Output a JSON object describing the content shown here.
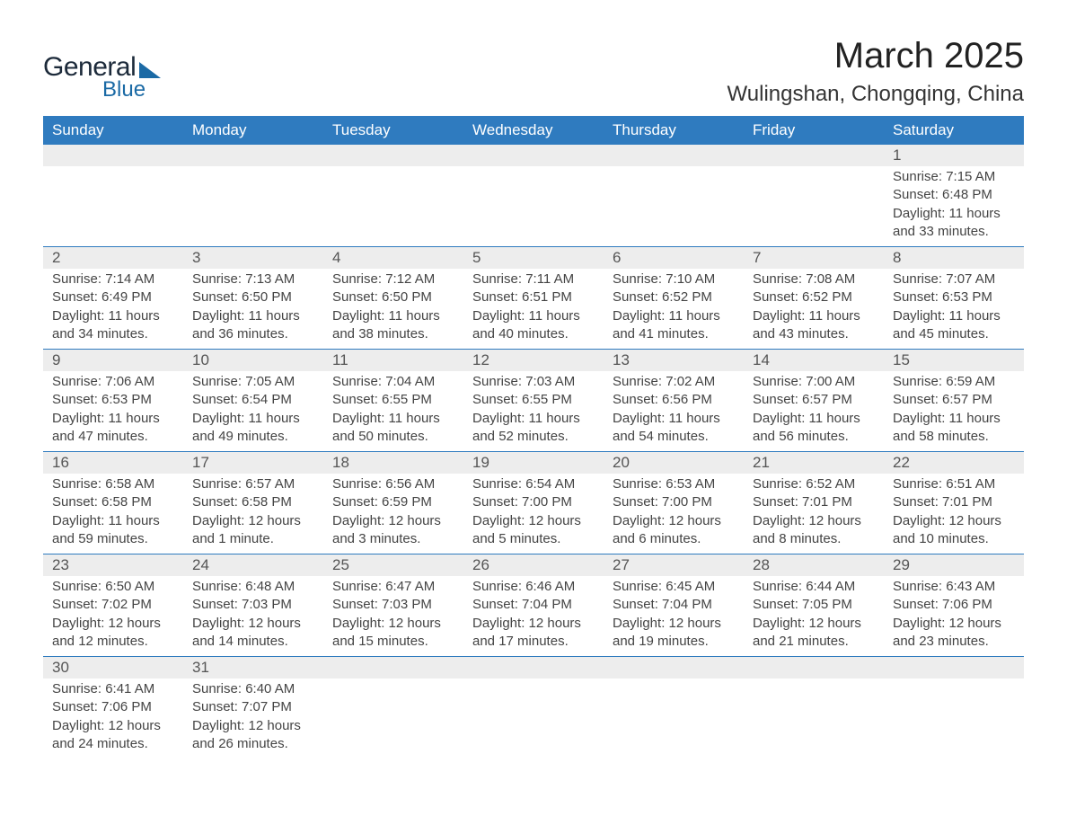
{
  "logo": {
    "word1": "General",
    "word2": "Blue"
  },
  "title": "March 2025",
  "location": "Wulingshan, Chongqing, China",
  "styling": {
    "header_bg": "#2f7bbf",
    "header_text_color": "#ffffff",
    "daynum_bg": "#ededed",
    "border_color": "#2f7bbf",
    "body_bg": "#ffffff",
    "page_bg": "#ffffff",
    "text_color": "#444444",
    "logo_dark": "#1c2a3a",
    "logo_blue": "#1b6aa5",
    "title_fontsize": 40,
    "location_fontsize": 24,
    "header_fontsize": 17,
    "cell_fontsize": 15
  },
  "weekdays": [
    "Sunday",
    "Monday",
    "Tuesday",
    "Wednesday",
    "Thursday",
    "Friday",
    "Saturday"
  ],
  "weeks": [
    [
      null,
      null,
      null,
      null,
      null,
      null,
      {
        "n": "1",
        "sr": "Sunrise: 7:15 AM",
        "ss": "Sunset: 6:48 PM",
        "d1": "Daylight: 11 hours",
        "d2": "and 33 minutes."
      }
    ],
    [
      {
        "n": "2",
        "sr": "Sunrise: 7:14 AM",
        "ss": "Sunset: 6:49 PM",
        "d1": "Daylight: 11 hours",
        "d2": "and 34 minutes."
      },
      {
        "n": "3",
        "sr": "Sunrise: 7:13 AM",
        "ss": "Sunset: 6:50 PM",
        "d1": "Daylight: 11 hours",
        "d2": "and 36 minutes."
      },
      {
        "n": "4",
        "sr": "Sunrise: 7:12 AM",
        "ss": "Sunset: 6:50 PM",
        "d1": "Daylight: 11 hours",
        "d2": "and 38 minutes."
      },
      {
        "n": "5",
        "sr": "Sunrise: 7:11 AM",
        "ss": "Sunset: 6:51 PM",
        "d1": "Daylight: 11 hours",
        "d2": "and 40 minutes."
      },
      {
        "n": "6",
        "sr": "Sunrise: 7:10 AM",
        "ss": "Sunset: 6:52 PM",
        "d1": "Daylight: 11 hours",
        "d2": "and 41 minutes."
      },
      {
        "n": "7",
        "sr": "Sunrise: 7:08 AM",
        "ss": "Sunset: 6:52 PM",
        "d1": "Daylight: 11 hours",
        "d2": "and 43 minutes."
      },
      {
        "n": "8",
        "sr": "Sunrise: 7:07 AM",
        "ss": "Sunset: 6:53 PM",
        "d1": "Daylight: 11 hours",
        "d2": "and 45 minutes."
      }
    ],
    [
      {
        "n": "9",
        "sr": "Sunrise: 7:06 AM",
        "ss": "Sunset: 6:53 PM",
        "d1": "Daylight: 11 hours",
        "d2": "and 47 minutes."
      },
      {
        "n": "10",
        "sr": "Sunrise: 7:05 AM",
        "ss": "Sunset: 6:54 PM",
        "d1": "Daylight: 11 hours",
        "d2": "and 49 minutes."
      },
      {
        "n": "11",
        "sr": "Sunrise: 7:04 AM",
        "ss": "Sunset: 6:55 PM",
        "d1": "Daylight: 11 hours",
        "d2": "and 50 minutes."
      },
      {
        "n": "12",
        "sr": "Sunrise: 7:03 AM",
        "ss": "Sunset: 6:55 PM",
        "d1": "Daylight: 11 hours",
        "d2": "and 52 minutes."
      },
      {
        "n": "13",
        "sr": "Sunrise: 7:02 AM",
        "ss": "Sunset: 6:56 PM",
        "d1": "Daylight: 11 hours",
        "d2": "and 54 minutes."
      },
      {
        "n": "14",
        "sr": "Sunrise: 7:00 AM",
        "ss": "Sunset: 6:57 PM",
        "d1": "Daylight: 11 hours",
        "d2": "and 56 minutes."
      },
      {
        "n": "15",
        "sr": "Sunrise: 6:59 AM",
        "ss": "Sunset: 6:57 PM",
        "d1": "Daylight: 11 hours",
        "d2": "and 58 minutes."
      }
    ],
    [
      {
        "n": "16",
        "sr": "Sunrise: 6:58 AM",
        "ss": "Sunset: 6:58 PM",
        "d1": "Daylight: 11 hours",
        "d2": "and 59 minutes."
      },
      {
        "n": "17",
        "sr": "Sunrise: 6:57 AM",
        "ss": "Sunset: 6:58 PM",
        "d1": "Daylight: 12 hours",
        "d2": "and 1 minute."
      },
      {
        "n": "18",
        "sr": "Sunrise: 6:56 AM",
        "ss": "Sunset: 6:59 PM",
        "d1": "Daylight: 12 hours",
        "d2": "and 3 minutes."
      },
      {
        "n": "19",
        "sr": "Sunrise: 6:54 AM",
        "ss": "Sunset: 7:00 PM",
        "d1": "Daylight: 12 hours",
        "d2": "and 5 minutes."
      },
      {
        "n": "20",
        "sr": "Sunrise: 6:53 AM",
        "ss": "Sunset: 7:00 PM",
        "d1": "Daylight: 12 hours",
        "d2": "and 6 minutes."
      },
      {
        "n": "21",
        "sr": "Sunrise: 6:52 AM",
        "ss": "Sunset: 7:01 PM",
        "d1": "Daylight: 12 hours",
        "d2": "and 8 minutes."
      },
      {
        "n": "22",
        "sr": "Sunrise: 6:51 AM",
        "ss": "Sunset: 7:01 PM",
        "d1": "Daylight: 12 hours",
        "d2": "and 10 minutes."
      }
    ],
    [
      {
        "n": "23",
        "sr": "Sunrise: 6:50 AM",
        "ss": "Sunset: 7:02 PM",
        "d1": "Daylight: 12 hours",
        "d2": "and 12 minutes."
      },
      {
        "n": "24",
        "sr": "Sunrise: 6:48 AM",
        "ss": "Sunset: 7:03 PM",
        "d1": "Daylight: 12 hours",
        "d2": "and 14 minutes."
      },
      {
        "n": "25",
        "sr": "Sunrise: 6:47 AM",
        "ss": "Sunset: 7:03 PM",
        "d1": "Daylight: 12 hours",
        "d2": "and 15 minutes."
      },
      {
        "n": "26",
        "sr": "Sunrise: 6:46 AM",
        "ss": "Sunset: 7:04 PM",
        "d1": "Daylight: 12 hours",
        "d2": "and 17 minutes."
      },
      {
        "n": "27",
        "sr": "Sunrise: 6:45 AM",
        "ss": "Sunset: 7:04 PM",
        "d1": "Daylight: 12 hours",
        "d2": "and 19 minutes."
      },
      {
        "n": "28",
        "sr": "Sunrise: 6:44 AM",
        "ss": "Sunset: 7:05 PM",
        "d1": "Daylight: 12 hours",
        "d2": "and 21 minutes."
      },
      {
        "n": "29",
        "sr": "Sunrise: 6:43 AM",
        "ss": "Sunset: 7:06 PM",
        "d1": "Daylight: 12 hours",
        "d2": "and 23 minutes."
      }
    ],
    [
      {
        "n": "30",
        "sr": "Sunrise: 6:41 AM",
        "ss": "Sunset: 7:06 PM",
        "d1": "Daylight: 12 hours",
        "d2": "and 24 minutes."
      },
      {
        "n": "31",
        "sr": "Sunrise: 6:40 AM",
        "ss": "Sunset: 7:07 PM",
        "d1": "Daylight: 12 hours",
        "d2": "and 26 minutes."
      },
      null,
      null,
      null,
      null,
      null
    ]
  ]
}
